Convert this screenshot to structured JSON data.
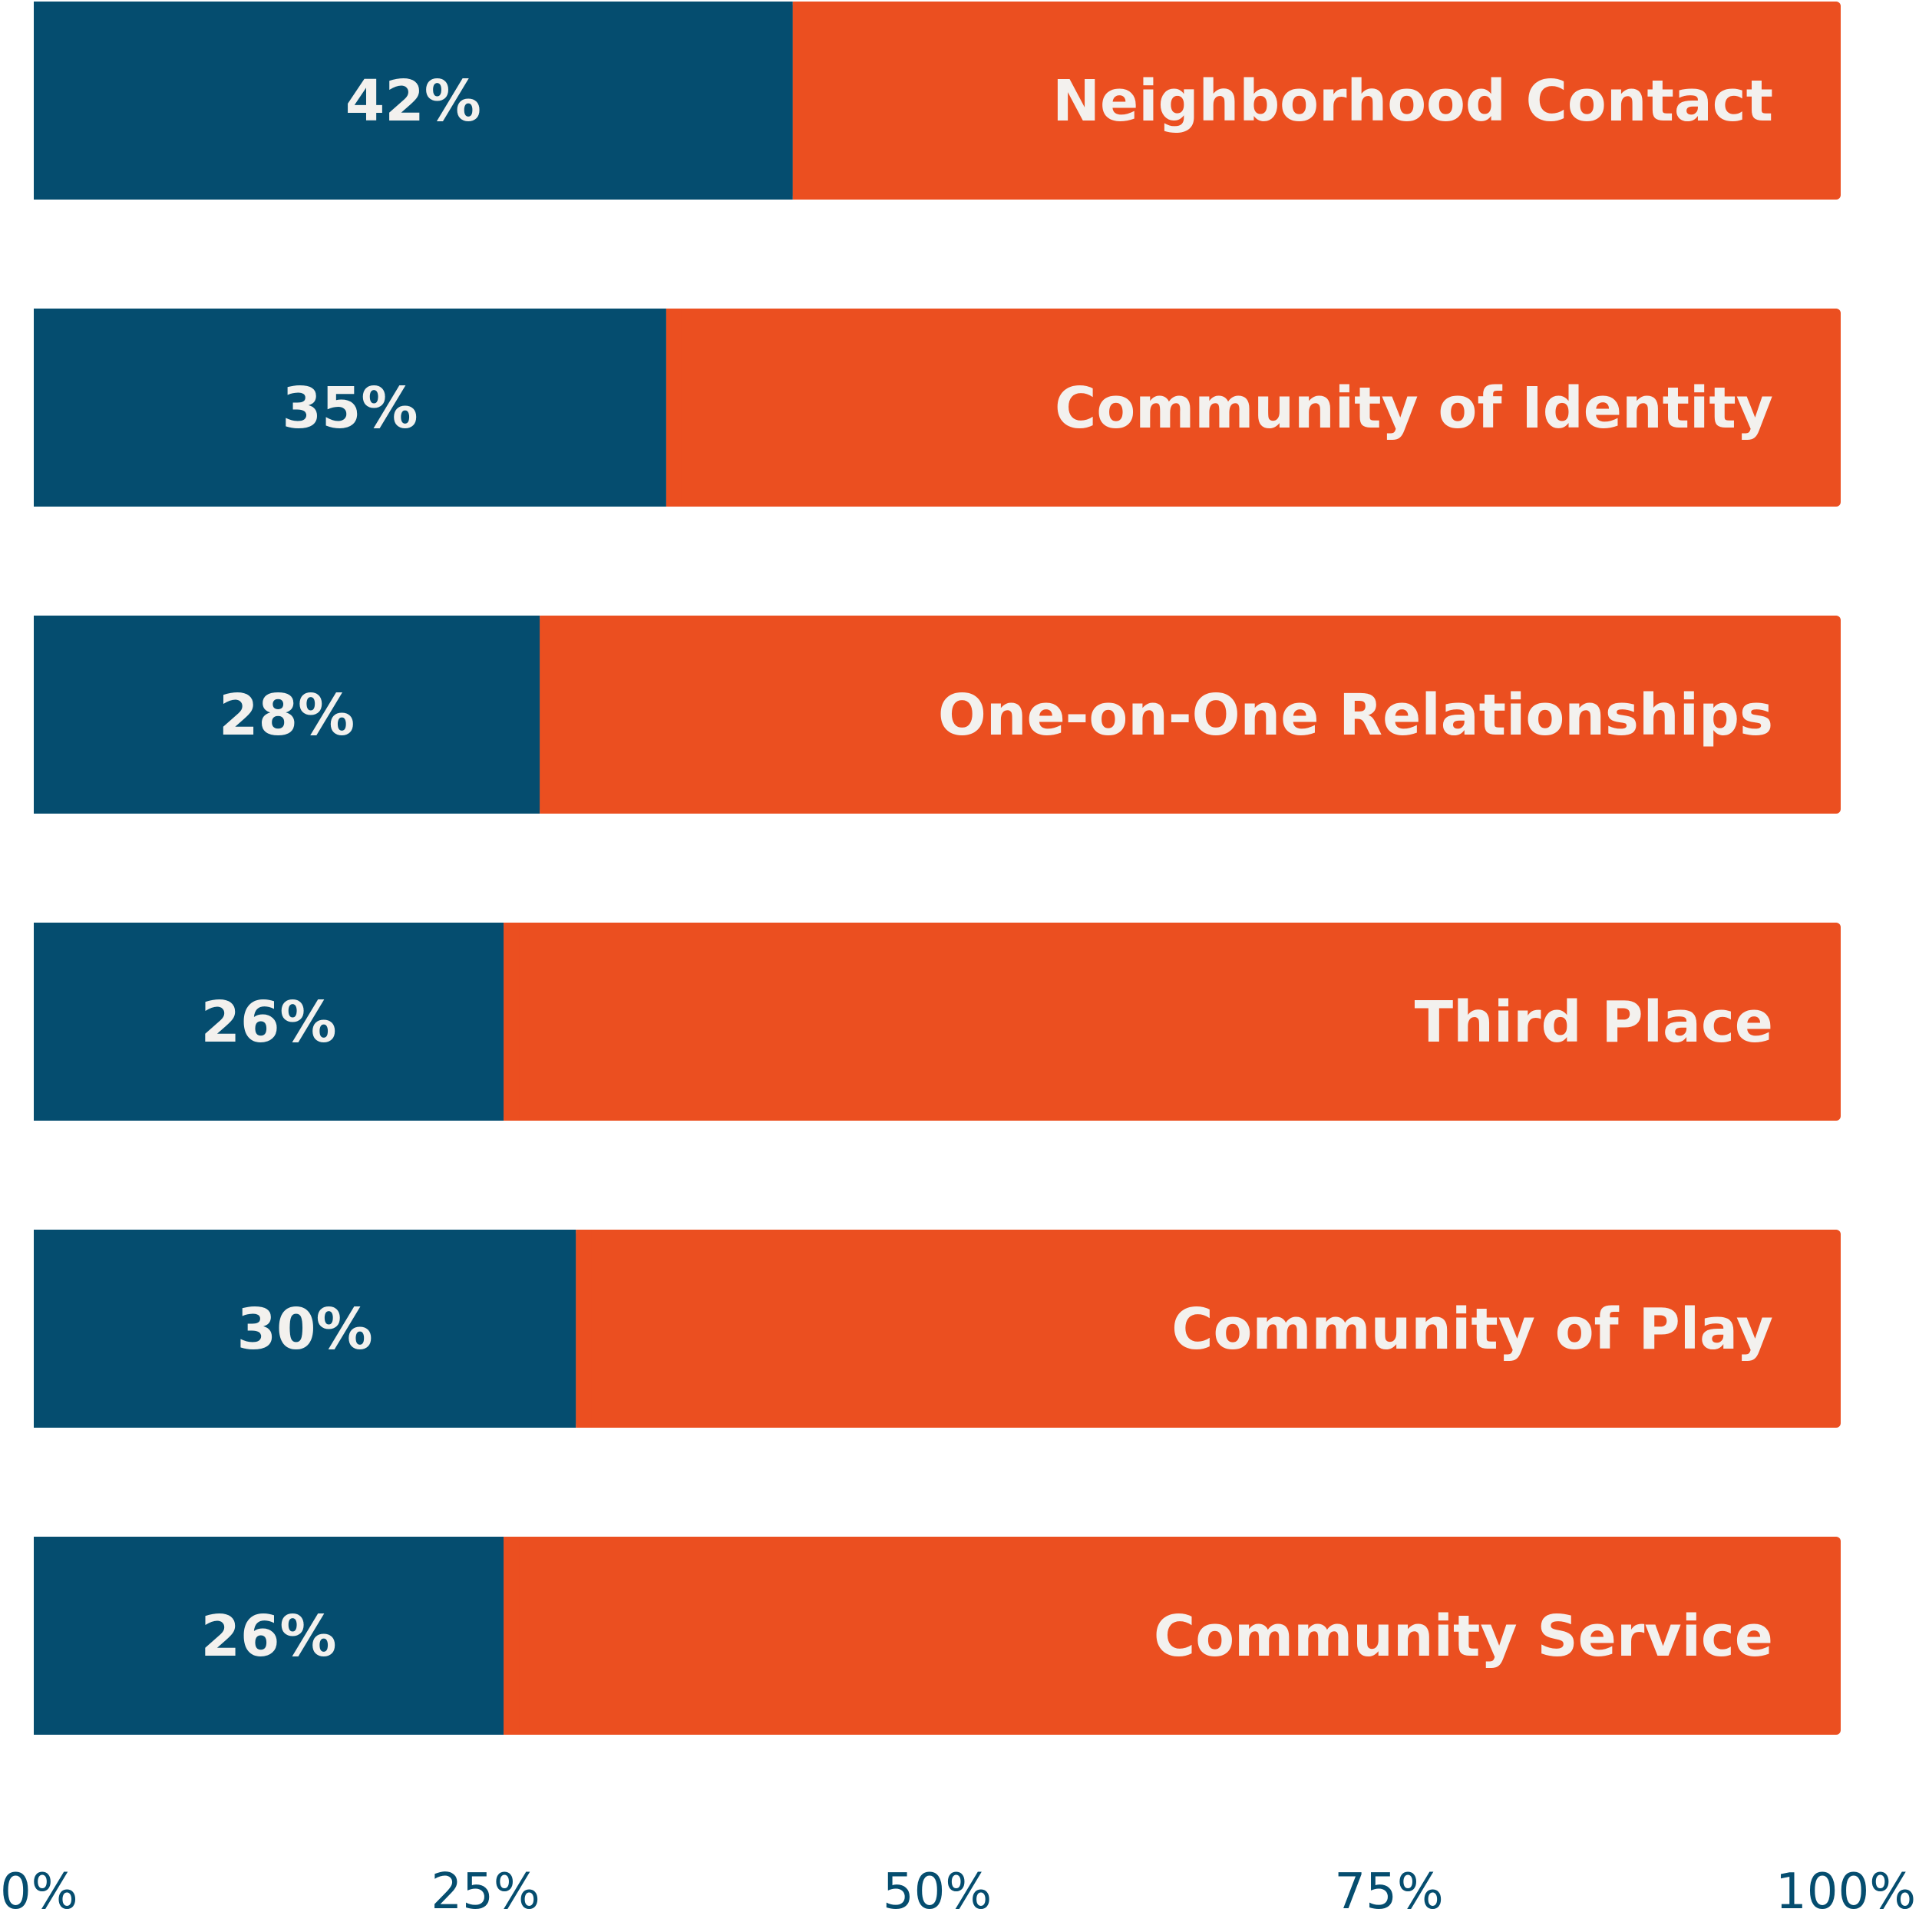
{
  "chart_data": {
    "type": "bar",
    "orientation": "horizontal",
    "stacked": true,
    "categories": [
      "Neighborhood Contact",
      "Community of Identity",
      "One-on-One Relationships",
      "Third Place",
      "Community of Play",
      "Community Service"
    ],
    "values": [
      42,
      35,
      28,
      26,
      30,
      26
    ],
    "value_labels": [
      "42%",
      "35%",
      "28%",
      "26%",
      "30%",
      "26%"
    ],
    "xlim": [
      0,
      100
    ],
    "x_ticks": [
      0,
      25,
      50,
      75,
      100
    ],
    "x_tick_labels": [
      "0%",
      "25%",
      "50%",
      "75%",
      "100%"
    ],
    "grid": false,
    "legend": "none",
    "colors": {
      "value": "#054d6f",
      "remainder": "#eb4f20",
      "label_text": "#f3f1ee",
      "tick_text": "#054d6f"
    }
  }
}
